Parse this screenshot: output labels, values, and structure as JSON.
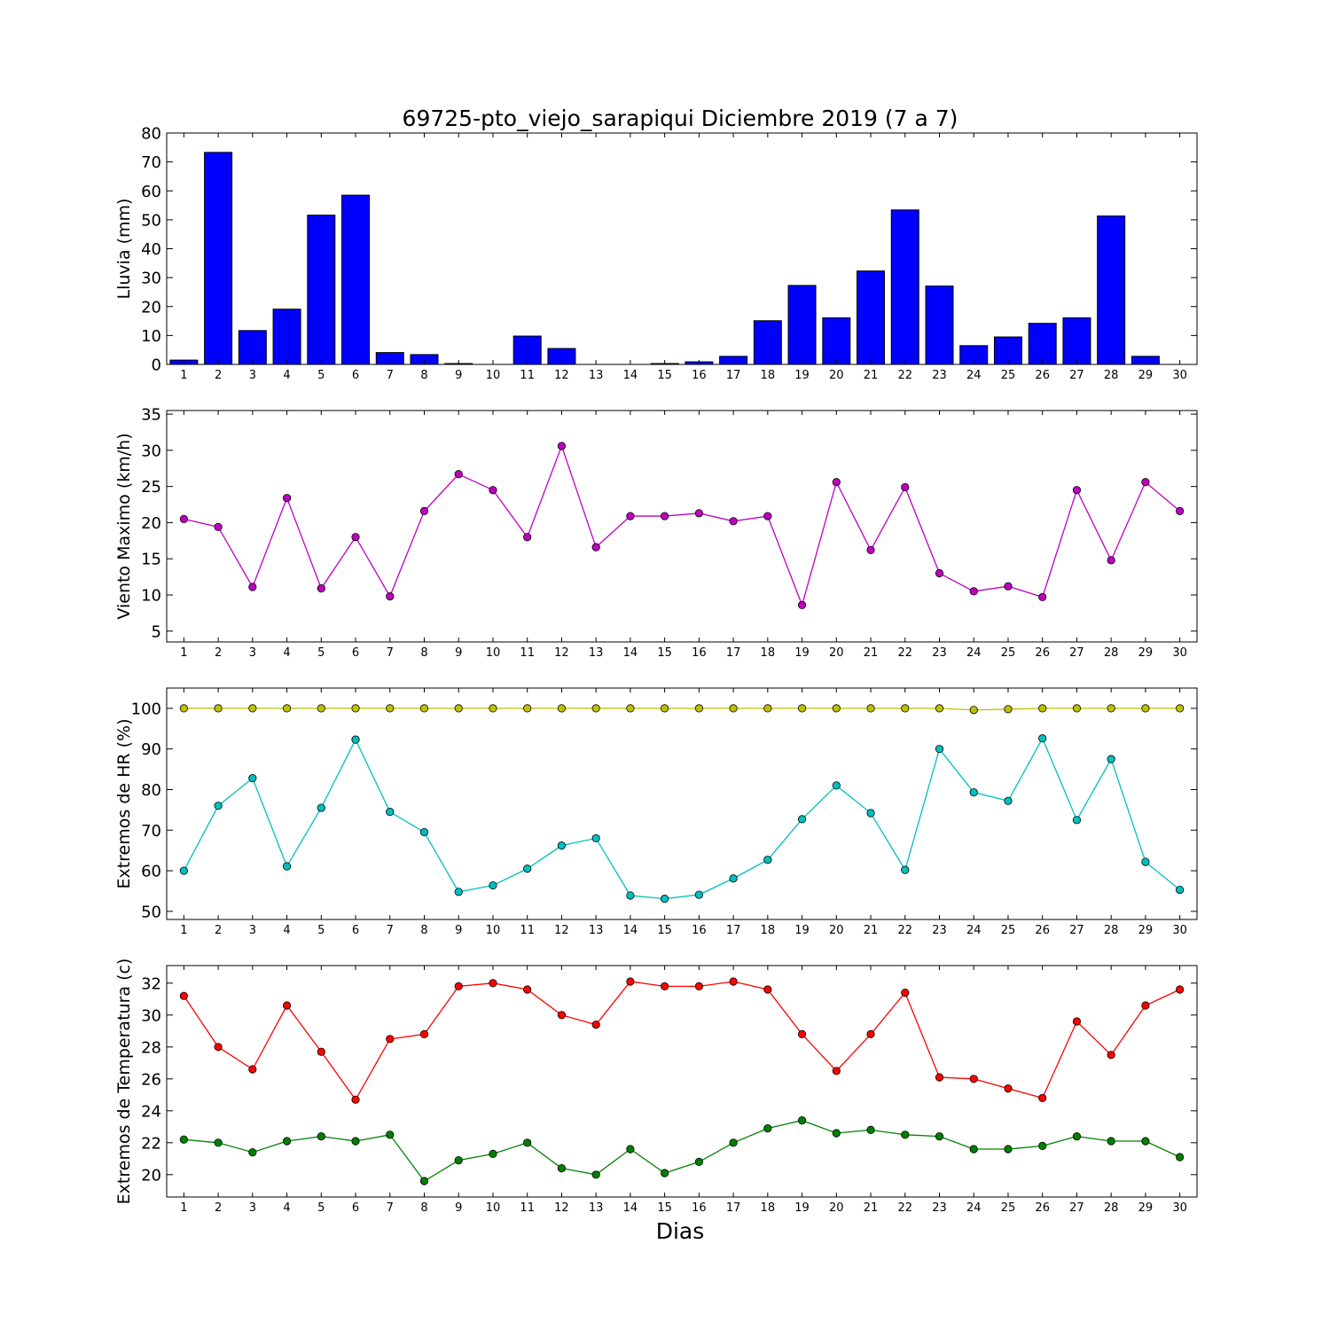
{
  "chart_data": [
    {
      "type": "bar",
      "title": "69725-pto_viejo_sarapiqui Diciembre 2019  (7 a 7)",
      "ylabel": "Lluvia (mm)",
      "xlabel": "",
      "x": [
        1,
        2,
        3,
        4,
        5,
        6,
        7,
        8,
        9,
        10,
        11,
        12,
        13,
        14,
        15,
        16,
        17,
        18,
        19,
        20,
        21,
        22,
        23,
        24,
        25,
        26,
        27,
        28,
        29,
        30
      ],
      "ylim": [
        0,
        80
      ],
      "yticks": [
        0,
        10,
        20,
        30,
        40,
        50,
        60,
        70,
        80
      ],
      "series": [
        {
          "color": "#0000ff",
          "values": [
            1.5,
            73.3,
            11.7,
            19.1,
            51.6,
            58.5,
            4.1,
            3.4,
            0.3,
            0.0,
            9.8,
            5.5,
            0.0,
            0.0,
            0.3,
            0.9,
            2.8,
            15.1,
            27.3,
            16.1,
            32.3,
            53.4,
            27.1,
            6.5,
            9.5,
            14.2,
            16.1,
            51.3,
            2.8,
            0.0
          ]
        }
      ]
    },
    {
      "type": "line",
      "title": "",
      "ylabel": "Viento Maximo (km/h)",
      "xlabel": "",
      "x": [
        1,
        2,
        3,
        4,
        5,
        6,
        7,
        8,
        9,
        10,
        11,
        12,
        13,
        14,
        15,
        16,
        17,
        18,
        19,
        20,
        21,
        22,
        23,
        24,
        25,
        26,
        27,
        28,
        29,
        30
      ],
      "ylim": [
        3.5,
        35.5
      ],
      "yticks": [
        5,
        10,
        15,
        20,
        25,
        30,
        35
      ],
      "series": [
        {
          "color": "#bf00bf",
          "values": [
            20.5,
            19.4,
            11.1,
            23.4,
            10.9,
            18.0,
            9.8,
            21.6,
            26.7,
            24.5,
            18.0,
            30.6,
            16.6,
            20.9,
            20.9,
            21.3,
            20.2,
            20.9,
            8.6,
            25.6,
            16.2,
            24.9,
            13.0,
            10.5,
            11.2,
            9.7,
            24.5,
            14.8,
            25.6,
            21.6
          ]
        }
      ]
    },
    {
      "type": "line",
      "title": "",
      "ylabel": "Extremos de HR (%)",
      "xlabel": "",
      "x": [
        1,
        2,
        3,
        4,
        5,
        6,
        7,
        8,
        9,
        10,
        11,
        12,
        13,
        14,
        15,
        16,
        17,
        18,
        19,
        20,
        21,
        22,
        23,
        24,
        25,
        26,
        27,
        28,
        29,
        30
      ],
      "ylim": [
        48,
        105
      ],
      "yticks": [
        50,
        60,
        70,
        80,
        90,
        100
      ],
      "series": [
        {
          "color": "#bfbf00",
          "values": [
            100,
            100,
            100,
            100,
            100,
            100,
            100,
            100,
            100,
            100,
            100,
            100,
            100,
            100,
            100,
            100,
            100,
            100,
            100,
            100,
            100,
            100,
            100,
            99.6,
            99.8,
            100,
            100,
            100,
            100,
            100
          ]
        },
        {
          "color": "#00bfbf",
          "values": [
            60.0,
            76.0,
            82.8,
            61.1,
            75.5,
            92.3,
            74.5,
            69.5,
            54.8,
            56.4,
            60.5,
            66.2,
            68.0,
            53.9,
            53.1,
            54.1,
            58.1,
            62.7,
            72.7,
            81.0,
            74.2,
            60.2,
            90.0,
            79.3,
            77.2,
            92.6,
            72.5,
            87.5,
            62.2,
            55.3
          ]
        }
      ]
    },
    {
      "type": "line",
      "title": "",
      "ylabel": "Extremos de Temperatura (c)",
      "xlabel": "Dias",
      "x": [
        1,
        2,
        3,
        4,
        5,
        6,
        7,
        8,
        9,
        10,
        11,
        12,
        13,
        14,
        15,
        16,
        17,
        18,
        19,
        20,
        21,
        22,
        23,
        24,
        25,
        26,
        27,
        28,
        29,
        30
      ],
      "ylim": [
        18.6,
        33.1
      ],
      "yticks": [
        20,
        22,
        24,
        26,
        28,
        30,
        32
      ],
      "series": [
        {
          "color": "#ff0000",
          "values": [
            31.2,
            28.0,
            26.6,
            30.6,
            27.7,
            24.7,
            28.5,
            28.8,
            31.8,
            32.0,
            31.6,
            30.0,
            29.4,
            32.1,
            31.8,
            31.8,
            32.1,
            31.6,
            28.8,
            26.5,
            28.8,
            31.4,
            26.1,
            26.0,
            25.4,
            24.8,
            29.6,
            27.5,
            30.6,
            31.6
          ]
        },
        {
          "color": "#008000",
          "values": [
            22.2,
            22.0,
            21.4,
            22.1,
            22.4,
            22.1,
            22.5,
            19.6,
            20.9,
            21.3,
            22.0,
            20.4,
            20.0,
            21.6,
            20.1,
            20.8,
            22.0,
            22.9,
            23.4,
            22.6,
            22.8,
            22.5,
            22.4,
            21.6,
            21.6,
            21.8,
            22.4,
            22.1,
            22.1,
            21.1
          ]
        }
      ]
    }
  ]
}
